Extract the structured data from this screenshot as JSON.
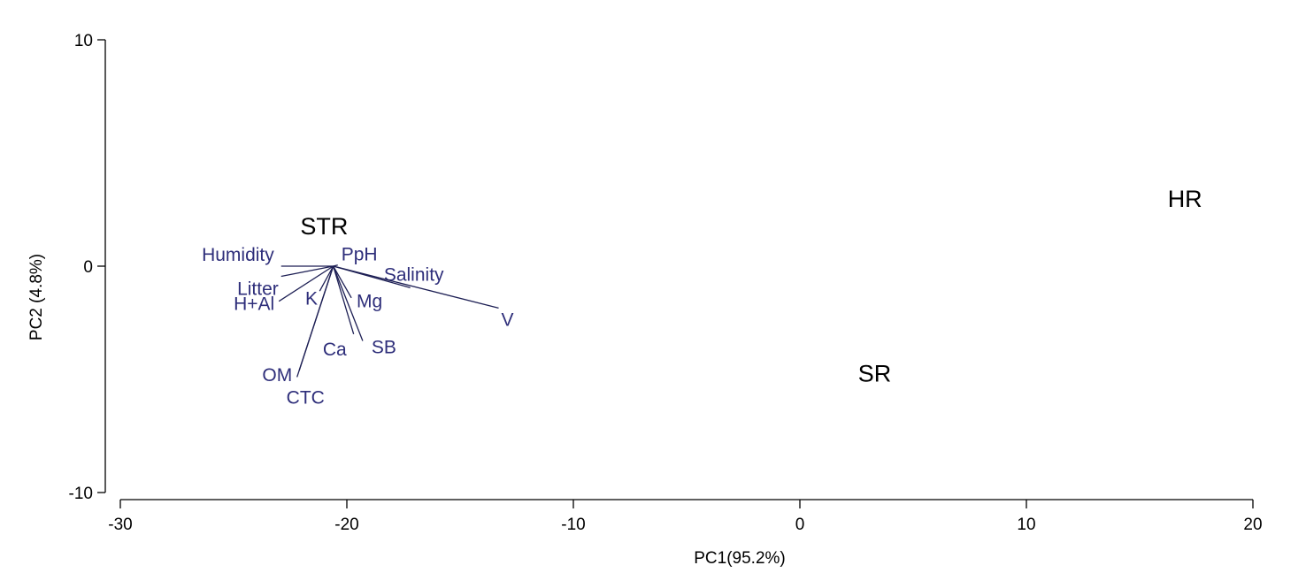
{
  "chart_data": {
    "type": "scatter",
    "title": "",
    "xlabel": "PC1(95.2%)",
    "ylabel": "PC2 (4.8%)",
    "xlim": [
      -30,
      20
    ],
    "ylim": [
      -10,
      10
    ],
    "xticks": [
      -30,
      -20,
      -10,
      0,
      10,
      20
    ],
    "yticks": [
      10,
      0,
      -10
    ],
    "grid": false,
    "samples": [
      {
        "label": "STR",
        "x": -21.0,
        "y": 1.8
      },
      {
        "label": "HR",
        "x": 17.0,
        "y": 3.0
      },
      {
        "label": "SR",
        "x": 3.3,
        "y": -4.7
      }
    ],
    "biplot_origin": {
      "x": -20.6,
      "y": 0.0
    },
    "vectors": [
      {
        "label": "Humidity",
        "x": -22.9,
        "y": 0.0
      },
      {
        "label": "Litter",
        "x": -22.9,
        "y": -0.45
      },
      {
        "label": "H+Al",
        "x": -23.0,
        "y": -1.55
      },
      {
        "label": "PpH",
        "x": -20.4,
        "y": 0.05
      },
      {
        "label": "Salinity",
        "x": -17.2,
        "y": -0.95
      },
      {
        "label": "V",
        "x": -13.3,
        "y": -1.85
      },
      {
        "label": "K",
        "x": -21.2,
        "y": -1.1
      },
      {
        "label": "Mg",
        "x": -19.8,
        "y": -1.4
      },
      {
        "label": "SB",
        "x": -19.3,
        "y": -3.3
      },
      {
        "label": "Ca",
        "x": -19.7,
        "y": -3.0
      },
      {
        "label": "OM",
        "x": -22.1,
        "y": -4.6
      },
      {
        "label": "CTC",
        "x": -22.2,
        "y": -4.9
      }
    ]
  }
}
